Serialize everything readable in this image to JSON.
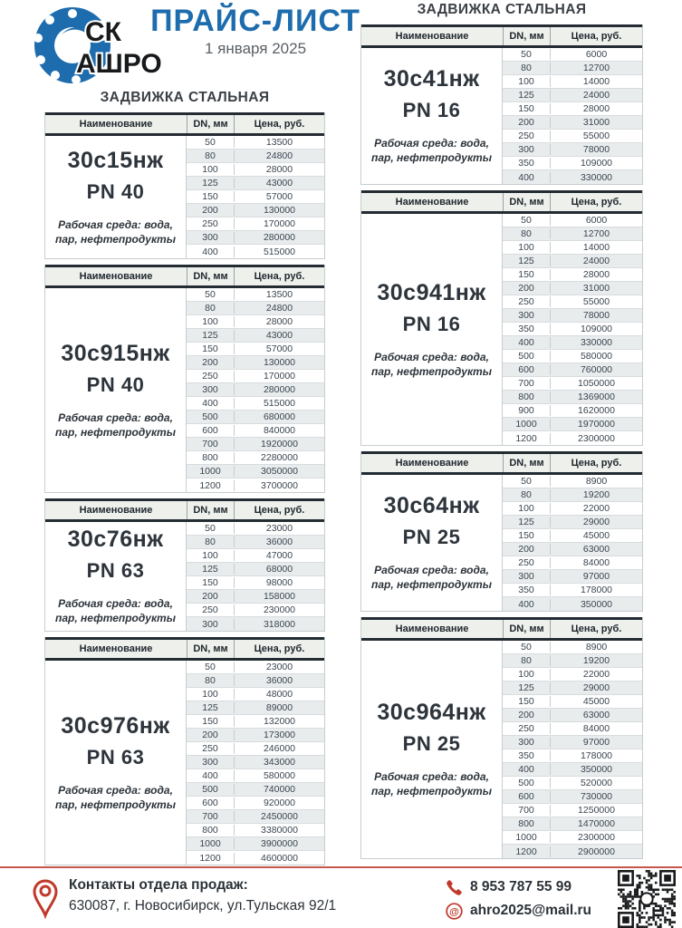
{
  "logo": {
    "line1": "СК",
    "line2": "АШРО"
  },
  "header": {
    "title": "ПРАЙС-ЛИСТ",
    "date": "1 января 2025"
  },
  "table_headers": {
    "name": "Наименование",
    "dn": "DN, мм",
    "price": "Цена, руб."
  },
  "colors": {
    "accent_blue": "#1d6cae",
    "accent_red": "#c0392b",
    "header_row_bg": "#eef0ec",
    "stripe_row_bg": "#e8eced",
    "dark_border": "#232c32"
  },
  "sections": {
    "left": {
      "title": "ЗАДВИЖКА СТАЛЬНАЯ",
      "tables": [
        {
          "product": "30с15нж",
          "pn": "PN 40",
          "media": "Рабочая среда: вода, пар, нефтепродукты",
          "rows": [
            [
              50,
              13500
            ],
            [
              80,
              24800
            ],
            [
              100,
              28000
            ],
            [
              125,
              43000
            ],
            [
              150,
              57000
            ],
            [
              200,
              130000
            ],
            [
              250,
              170000
            ],
            [
              300,
              280000
            ],
            [
              400,
              515000
            ]
          ]
        },
        {
          "product": "30с915нж",
          "pn": "PN 40",
          "media": "Рабочая среда: вода, пар, нефтепродукты",
          "rows": [
            [
              50,
              13500
            ],
            [
              80,
              24800
            ],
            [
              100,
              28000
            ],
            [
              125,
              43000
            ],
            [
              150,
              57000
            ],
            [
              200,
              130000
            ],
            [
              250,
              170000
            ],
            [
              300,
              280000
            ],
            [
              400,
              515000
            ],
            [
              500,
              680000
            ],
            [
              600,
              840000
            ],
            [
              700,
              1920000
            ],
            [
              800,
              2280000
            ],
            [
              1000,
              3050000
            ],
            [
              1200,
              3700000
            ]
          ]
        },
        {
          "product": "30с76нж",
          "pn": "PN 63",
          "media": "Рабочая среда: вода, пар, нефтепродукты",
          "rows": [
            [
              50,
              23000
            ],
            [
              80,
              36000
            ],
            [
              100,
              47000
            ],
            [
              125,
              68000
            ],
            [
              150,
              98000
            ],
            [
              200,
              158000
            ],
            [
              250,
              230000
            ],
            [
              300,
              318000
            ]
          ]
        },
        {
          "product": "30с976нж",
          "pn": "PN 63",
          "media": "Рабочая среда: вода, пар, нефтепродукты",
          "rows": [
            [
              50,
              23000
            ],
            [
              80,
              36000
            ],
            [
              100,
              48000
            ],
            [
              125,
              89000
            ],
            [
              150,
              132000
            ],
            [
              200,
              173000
            ],
            [
              250,
              246000
            ],
            [
              300,
              343000
            ],
            [
              400,
              580000
            ],
            [
              500,
              740000
            ],
            [
              600,
              920000
            ],
            [
              700,
              2450000
            ],
            [
              800,
              3380000
            ],
            [
              1000,
              3900000
            ],
            [
              1200,
              4600000
            ]
          ]
        }
      ]
    },
    "right": {
      "title": "ЗАДВИЖКА СТАЛЬНАЯ",
      "tables": [
        {
          "product": "30с41нж",
          "pn": "PN 16",
          "media": "Рабочая среда: вода, пар, нефтепродукты",
          "rows": [
            [
              50,
              6000
            ],
            [
              80,
              12700
            ],
            [
              100,
              14000
            ],
            [
              125,
              24000
            ],
            [
              150,
              28000
            ],
            [
              200,
              31000
            ],
            [
              250,
              55000
            ],
            [
              300,
              78000
            ],
            [
              350,
              109000
            ],
            [
              400,
              330000
            ]
          ]
        },
        {
          "product": "30с941нж",
          "pn": "PN 16",
          "media": "Рабочая среда: вода, пар, нефтепродукты",
          "rows": [
            [
              50,
              6000
            ],
            [
              80,
              12700
            ],
            [
              100,
              14000
            ],
            [
              125,
              24000
            ],
            [
              150,
              28000
            ],
            [
              200,
              31000
            ],
            [
              250,
              55000
            ],
            [
              300,
              78000
            ],
            [
              350,
              109000
            ],
            [
              400,
              330000
            ],
            [
              500,
              580000
            ],
            [
              600,
              760000
            ],
            [
              700,
              1050000
            ],
            [
              800,
              1369000
            ],
            [
              900,
              1620000
            ],
            [
              1000,
              1970000
            ],
            [
              1200,
              2300000
            ]
          ]
        },
        {
          "product": "30с64нж",
          "pn": "PN 25",
          "media": "Рабочая среда: вода, пар, нефтепродукты",
          "rows": [
            [
              50,
              8900
            ],
            [
              80,
              19200
            ],
            [
              100,
              22000
            ],
            [
              125,
              29000
            ],
            [
              150,
              45000
            ],
            [
              200,
              63000
            ],
            [
              250,
              84000
            ],
            [
              300,
              97000
            ],
            [
              350,
              178000
            ],
            [
              400,
              350000
            ]
          ]
        },
        {
          "product": "30с964нж",
          "pn": "PN 25",
          "media": "Рабочая среда: вода, пар, нефтепродукты",
          "rows": [
            [
              50,
              8900
            ],
            [
              80,
              19200
            ],
            [
              100,
              22000
            ],
            [
              125,
              29000
            ],
            [
              150,
              45000
            ],
            [
              200,
              63000
            ],
            [
              250,
              84000
            ],
            [
              300,
              97000
            ],
            [
              350,
              178000
            ],
            [
              400,
              350000
            ],
            [
              500,
              520000
            ],
            [
              600,
              730000
            ],
            [
              700,
              1250000
            ],
            [
              800,
              1470000
            ],
            [
              1000,
              2300000
            ],
            [
              1200,
              2900000
            ]
          ]
        }
      ]
    }
  },
  "footer": {
    "contacts_label": "Контакты отдела продаж:",
    "address": "630087, г. Новосибирск, ул.Тульская 92/1",
    "phone": "8 953 787 55 99",
    "email": "ahro2025@mail.ru"
  }
}
